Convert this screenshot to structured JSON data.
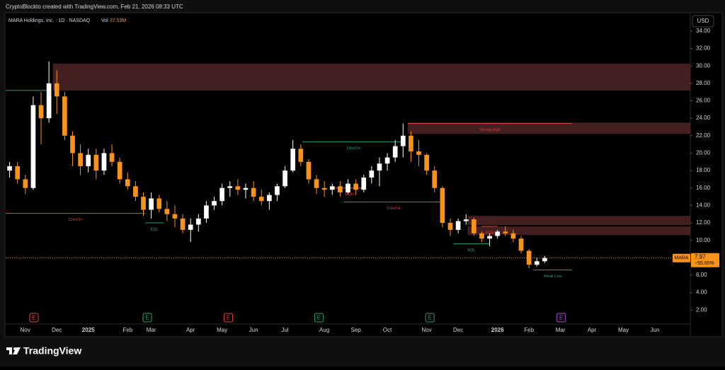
{
  "header": {
    "caption": "CryptoBlockto created with TradingView.com, Feb 21, 2026 08:33 UTC"
  },
  "footer": {
    "brand": "TradingView"
  },
  "chart_data": {
    "type": "candlestick",
    "title": "MARA Holdings, Inc. · 1D · NASDAQ",
    "volume_label": "Vol",
    "volume": "37.53M",
    "currency": "USD",
    "up_color": "#ffffff",
    "down_color": "#f7931a",
    "categories": [
      null,
      null,
      "Nov",
      null,
      null,
      null,
      "Dec",
      null,
      null,
      null,
      "2025",
      null,
      null,
      null,
      null,
      "Feb",
      null,
      null,
      "Mar",
      null,
      null,
      null,
      null,
      "Apr",
      null,
      null,
      null,
      "May",
      null,
      null,
      null,
      "Jun",
      null,
      null,
      null,
      "Jul",
      null,
      null,
      null,
      null,
      "Aug",
      null,
      null,
      null,
      "Sep",
      null,
      null,
      null,
      "Oct",
      null,
      null,
      null,
      null,
      "Nov",
      null,
      null,
      null,
      "Dec",
      null,
      null,
      null,
      null,
      "2026",
      null,
      null,
      null,
      "Feb",
      null,
      null,
      null,
      "Mar",
      null,
      null,
      null,
      "Apr",
      null,
      null,
      null,
      "May",
      null,
      null,
      null,
      "Jun",
      null,
      null,
      null,
      null
    ],
    "open": [
      18,
      18.5,
      17,
      16,
      25.5,
      24,
      28,
      26.5,
      22,
      20,
      18.5,
      19.8,
      18,
      20,
      19,
      17,
      16.2,
      15,
      13.5,
      14.8,
      13.6,
      13,
      12.5,
      11.2,
      11.8,
      12.5,
      14,
      14.5,
      16,
      16.2,
      15.8,
      16,
      15,
      14.5,
      15.2,
      16.2,
      18,
      20.5,
      19,
      17,
      16,
      15.8,
      16.2,
      15.5,
      16.5,
      15.8,
      17.2,
      18,
      18.8,
      19.5,
      20.8,
      22,
      20.2,
      19.8,
      18,
      16,
      12,
      11.2,
      12.2,
      12.4,
      10.8,
      10.2,
      10.5,
      11,
      10.8,
      10.2,
      8.8,
      7.2,
      7.6,
      null,
      null,
      null,
      null,
      null,
      null,
      null,
      null,
      null,
      null,
      null,
      null,
      null,
      null,
      null,
      null,
      null,
      null
    ],
    "high": [
      19,
      19,
      17.5,
      26.5,
      27,
      30.5,
      29.5,
      27,
      22.5,
      21,
      20.5,
      20.5,
      20.5,
      21,
      19.5,
      17.8,
      16.8,
      15.5,
      15.5,
      15.2,
      14.5,
      14,
      13,
      12.5,
      13,
      14.5,
      15,
      16.5,
      16.8,
      17,
      16.5,
      16.8,
      15.8,
      15.5,
      16.5,
      18.5,
      21.5,
      21,
      19.3,
      17.5,
      16.8,
      16.5,
      16.8,
      17,
      17,
      17.5,
      18.5,
      19.5,
      20,
      21.5,
      23.4,
      22.5,
      21.5,
      20,
      18.5,
      16.2,
      12.5,
      12.5,
      13,
      12.6,
      11,
      10.8,
      11.2,
      11.6,
      11.2,
      10.5,
      9,
      8,
      8.2,
      null,
      null,
      null,
      null,
      null,
      null,
      null,
      null,
      null,
      null,
      null,
      null,
      null,
      null,
      null,
      null,
      null,
      null
    ],
    "low": [
      17.2,
      16.5,
      15.3,
      15.8,
      21,
      23.5,
      24.5,
      21.5,
      18.5,
      17.5,
      17.8,
      17,
      17.5,
      18.5,
      16.5,
      15.8,
      14.5,
      12.8,
      12.5,
      13.2,
      12.2,
      11.5,
      10.8,
      9.8,
      11,
      12,
      13.5,
      14,
      15,
      15.2,
      14.8,
      14.5,
      14,
      13.5,
      14.5,
      16,
      17.8,
      18.5,
      16.5,
      15.3,
      15,
      15.2,
      15,
      15.3,
      15.2,
      15.5,
      16.5,
      16.2,
      18,
      19,
      19.5,
      19,
      18.5,
      17.5,
      15.5,
      11.5,
      10.5,
      10.8,
      11.8,
      10.5,
      9.8,
      9.3,
      10.2,
      10.5,
      9.8,
      8.5,
      6.8,
      7,
      7.4,
      null,
      null,
      null,
      null,
      null,
      null,
      null,
      null,
      null,
      null,
      null,
      null,
      null,
      null,
      null,
      null,
      null,
      null
    ],
    "close": [
      18.5,
      17,
      16,
      25.5,
      24,
      28,
      26.5,
      22,
      20,
      18.5,
      19.8,
      18,
      20,
      19,
      17,
      16.2,
      15,
      13.5,
      14.8,
      13.6,
      13,
      12.5,
      11.2,
      11.8,
      12.5,
      14,
      14.5,
      16,
      16.2,
      15.8,
      16,
      15,
      14.5,
      15.2,
      16.2,
      18,
      20.5,
      19,
      17,
      16,
      15.8,
      16.2,
      15.5,
      16.5,
      15.8,
      17.2,
      18,
      18.8,
      19.5,
      20.8,
      22,
      20.2,
      19.8,
      18,
      16,
      12,
      11.2,
      12.2,
      12.4,
      10.8,
      10.2,
      10.5,
      11,
      10.8,
      10.2,
      8.8,
      7.2,
      7.6,
      7.97,
      null,
      null,
      null,
      null,
      null,
      null,
      null,
      null,
      null,
      null,
      null,
      null,
      null,
      null,
      null,
      null,
      null,
      null
    ],
    "ylim": [
      0.4,
      36.1
    ],
    "yticks": [
      {
        "value": 2,
        "label": "2.00"
      },
      {
        "value": 4,
        "label": "4.00"
      },
      {
        "value": 6,
        "label": "6.00"
      },
      {
        "value": 8,
        "label": "8.00"
      },
      {
        "value": 10,
        "label": "10.00"
      },
      {
        "value": 12,
        "label": "12.00"
      },
      {
        "value": 14,
        "label": "14.00"
      },
      {
        "value": 16,
        "label": "16.00"
      },
      {
        "value": 18,
        "label": "18.00"
      },
      {
        "value": 20,
        "label": "20.00"
      },
      {
        "value": 22,
        "label": "22.00"
      },
      {
        "value": 24,
        "label": "24.00"
      },
      {
        "value": 26,
        "label": "26.00"
      },
      {
        "value": 28,
        "label": "28.00"
      },
      {
        "value": 30,
        "label": "30.00"
      },
      {
        "value": 32,
        "label": "32.00"
      },
      {
        "value": 34,
        "label": "34.00"
      }
    ],
    "last_price": {
      "symbol": "MARA",
      "value": 7.97,
      "change": "−55.65%",
      "color": "#f7931a"
    },
    "zones": [
      {
        "top": 30.27,
        "bottom": 27.18,
        "from": 5.5,
        "color": "#5a2a2a"
      },
      {
        "top": 23.5,
        "bottom": 22.2,
        "from": 50.6,
        "color": "#5a2a2a"
      },
      {
        "top": 12.8,
        "bottom": 11.75,
        "from": 58.2,
        "color": "#5a2a2a"
      },
      {
        "top": 11.58,
        "bottom": 10.6,
        "from": 58.2,
        "color": "#5a2a2a"
      }
    ],
    "levels": [
      {
        "label": null,
        "price": 27.2,
        "from": -0.5,
        "to": 5.1,
        "color": "#1fa37a"
      },
      {
        "label": "CHoCH",
        "price": 13.1,
        "from": -0.5,
        "to": 17.2,
        "color": "#e0403a"
      },
      {
        "label": "EQL",
        "price": 12.0,
        "from": 17.2,
        "to": 19.6,
        "color": "#1fa37a"
      },
      {
        "label": "CHoCH",
        "price": 21.3,
        "from": 37.2,
        "to": 50.2,
        "color": "#1fa37a"
      },
      {
        "label": "EQH",
        "price": 16.0,
        "from": 41.1,
        "to": 45.3,
        "color": "#e0403a"
      },
      {
        "label": "CHoCH",
        "price": 14.4,
        "from": 42.5,
        "to": 55.1,
        "color": "#e0403a"
      },
      {
        "label": "Strong High",
        "price": 23.4,
        "from": 50.6,
        "to": 71.5,
        "color": "#e0403a"
      },
      {
        "label": "EQH",
        "price": 11.6,
        "from": 60,
        "to": 62,
        "color": "#e0403a"
      },
      {
        "label": "EQL",
        "price": 9.6,
        "from": 56.4,
        "to": 61,
        "color": "#1fa37a"
      },
      {
        "label": "Weak Low",
        "price": 6.6,
        "from": 66.5,
        "to": 71.5,
        "color": "#1fa37a"
      }
    ],
    "earnings": [
      {
        "label": "E",
        "x": 3.1,
        "color": "#e0403a"
      },
      {
        "label": "E",
        "x": 17.5,
        "color": "#1fa37a"
      },
      {
        "label": "E",
        "x": 27.8,
        "color": "#e0403a"
      },
      {
        "label": "E",
        "x": 39.3,
        "color": "#1fa37a"
      },
      {
        "label": "E",
        "x": 53.4,
        "color": "#1fa37a"
      },
      {
        "label": "E",
        "x": 70.1,
        "color": "#b04ad6"
      }
    ]
  }
}
